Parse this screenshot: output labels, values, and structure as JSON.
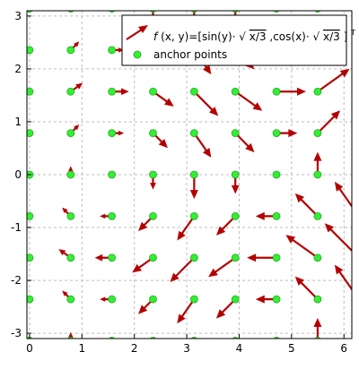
{
  "chart_data": {
    "type": "vector-field",
    "title": "",
    "xlabel": "",
    "ylabel": "",
    "xlim": [
      -0.05,
      6.15
    ],
    "ylim": [
      -3.1,
      3.1
    ],
    "xticks": [
      0,
      1,
      2,
      3,
      4,
      5,
      6
    ],
    "yticks": [
      -3,
      -2,
      -1,
      0,
      1,
      2,
      3
    ],
    "grid": true,
    "legend_position": "top-right",
    "legend": [
      {
        "kind": "arrow",
        "color": "#b40000",
        "parts": [
          "f",
          "(x, y)=[sin(y)·",
          "x/3",
          ",cos(x)·",
          "x/3",
          "]",
          "T"
        ]
      },
      {
        "kind": "marker",
        "color": "#33ee33",
        "label": "anchor points"
      }
    ],
    "x": [
      0,
      0.7854,
      1.5708,
      2.3562,
      3.1416,
      3.927,
      4.7124,
      5.4978,
      6.2832
    ],
    "y": [
      -3.1416,
      -2.3562,
      -1.5708,
      -0.7854,
      0,
      0.7854,
      1.5708,
      2.3562,
      3.1416
    ],
    "arrow_scale": 0.45,
    "arrow_color": "#b40000",
    "marker_color": "#33ee33"
  }
}
